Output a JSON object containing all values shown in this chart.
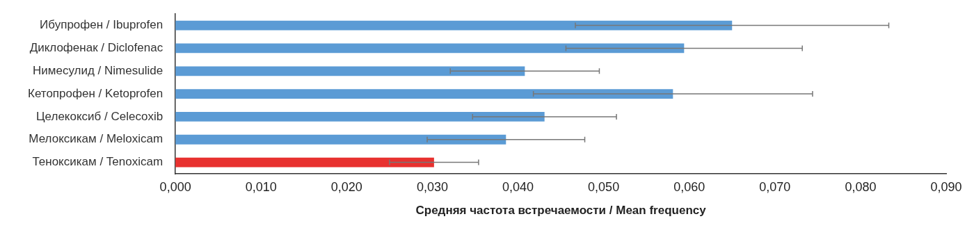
{
  "chart_data": {
    "type": "bar",
    "orientation": "horizontal",
    "xlabel": "Средняя частота встречаемости / Mean frequency",
    "categories": [
      "Ибупрофен / Ibuprofen",
      "Диклофенак / Diclofenac",
      "Нимесулид / Nimesulide",
      "Кетопрофен / Ketoprofen",
      "Целекоксиб / Celecoxib",
      "Мелоксикам / Meloxicam",
      "Теноксикам / Tenoxicam"
    ],
    "values": [
      0.065,
      0.0594,
      0.0408,
      0.0581,
      0.0431,
      0.0386,
      0.0302
    ],
    "errors": [
      0.0183,
      0.0138,
      0.0087,
      0.0163,
      0.0084,
      0.0092,
      0.0052
    ],
    "colors": [
      "#5b9bd5",
      "#5b9bd5",
      "#5b9bd5",
      "#5b9bd5",
      "#5b9bd5",
      "#5b9bd5",
      "#e8312f"
    ],
    "xlim": [
      0,
      0.09
    ],
    "xticks": [
      {
        "value": 0,
        "label": "0,000"
      },
      {
        "value": 0.01,
        "label": "0,010"
      },
      {
        "value": 0.02,
        "label": "0,020"
      },
      {
        "value": 0.03,
        "label": "0,030"
      },
      {
        "value": 0.04,
        "label": "0,040"
      },
      {
        "value": 0.05,
        "label": "0,050"
      },
      {
        "value": 0.06,
        "label": "0,060"
      },
      {
        "value": 0.07,
        "label": "0,070"
      },
      {
        "value": 0.08,
        "label": "0,080"
      },
      {
        "value": 0.09,
        "label": "0,090"
      }
    ],
    "grid": false,
    "legend": false
  }
}
